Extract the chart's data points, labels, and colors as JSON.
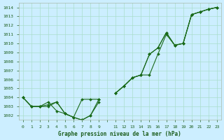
{
  "title": "Graphe pression niveau de la mer (hPa)",
  "bg_color": "#cceeff",
  "grid_color": "#aaddcc",
  "line_color": "#1a6b1a",
  "marker_color": "#1a6b1a",
  "xlim": [
    -0.5,
    23.5
  ],
  "ylim": [
    1001.5,
    1014.5
  ],
  "xticks": [
    0,
    1,
    2,
    3,
    4,
    5,
    6,
    7,
    8,
    9,
    10,
    11,
    12,
    13,
    14,
    15,
    16,
    17,
    18,
    19,
    20,
    21,
    22,
    23
  ],
  "xtick_labels": [
    "0",
    "1",
    "2",
    "3",
    "4",
    "5",
    "6",
    "7",
    "8",
    "9",
    "",
    "11",
    "12",
    "13",
    "14",
    "15",
    "16",
    "17",
    "18",
    "19",
    "20",
    "21",
    "22",
    "23"
  ],
  "yticks": [
    1002,
    1003,
    1004,
    1005,
    1006,
    1007,
    1008,
    1009,
    1010,
    1011,
    1012,
    1013,
    1014
  ],
  "series": [
    [
      1004.0,
      1003.0,
      1003.0,
      1003.0,
      1003.5,
      1002.2,
      1001.8,
      1001.5,
      1002.0,
      1003.8,
      null,
      1004.5,
      1005.3,
      1006.2,
      1006.5,
      1008.8,
      1009.5,
      1011.2,
      1009.8,
      1010.0,
      1013.2,
      1013.5,
      1013.8,
      1014.0
    ],
    [
      1004.0,
      1003.0,
      1003.0,
      1003.5,
      1002.5,
      1002.2,
      1001.8,
      1001.5,
      1002.0,
      1003.5,
      null,
      1004.5,
      1005.3,
      1006.2,
      1006.5,
      1006.5,
      1008.8,
      1011.0,
      1009.8,
      1010.0,
      1013.2,
      1013.5,
      1013.8,
      1014.0
    ],
    [
      1004.0,
      1003.0,
      1003.0,
      1003.2,
      1003.5,
      1002.2,
      1001.8,
      1003.8,
      1003.8,
      1003.8,
      null,
      1004.5,
      1005.3,
      1006.2,
      1006.5,
      1008.8,
      1009.5,
      1011.2,
      1009.8,
      1010.0,
      1013.2,
      1013.5,
      1013.8,
      1014.0
    ]
  ]
}
